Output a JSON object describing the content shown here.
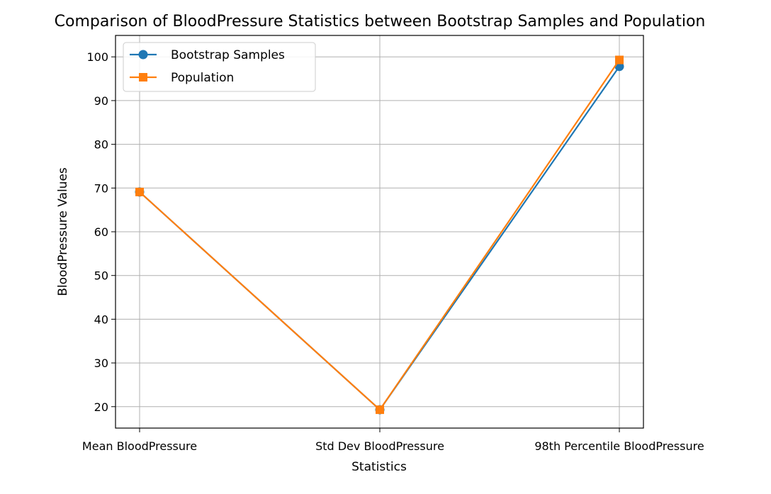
{
  "chart_data": {
    "type": "line",
    "title": "Comparison of BloodPressure Statistics between Bootstrap Samples and Population",
    "xlabel": "Statistics",
    "ylabel": "BloodPressure Values",
    "categories": [
      "Mean BloodPressure",
      "Std Dev BloodPressure",
      "98th Percentile BloodPressure"
    ],
    "ylim": [
      15.1,
      104.9
    ],
    "yticks": [
      20,
      30,
      40,
      50,
      60,
      70,
      80,
      90,
      100
    ],
    "grid": true,
    "legend_position": "top-left",
    "series": [
      {
        "name": "Bootstrap Samples",
        "values": [
          69.1,
          19.3,
          97.8
        ],
        "color": "#1f77b4",
        "marker": "circle"
      },
      {
        "name": "Population",
        "values": [
          69.1,
          19.3,
          99.3
        ],
        "color": "#ff7f0e",
        "marker": "square"
      }
    ]
  }
}
